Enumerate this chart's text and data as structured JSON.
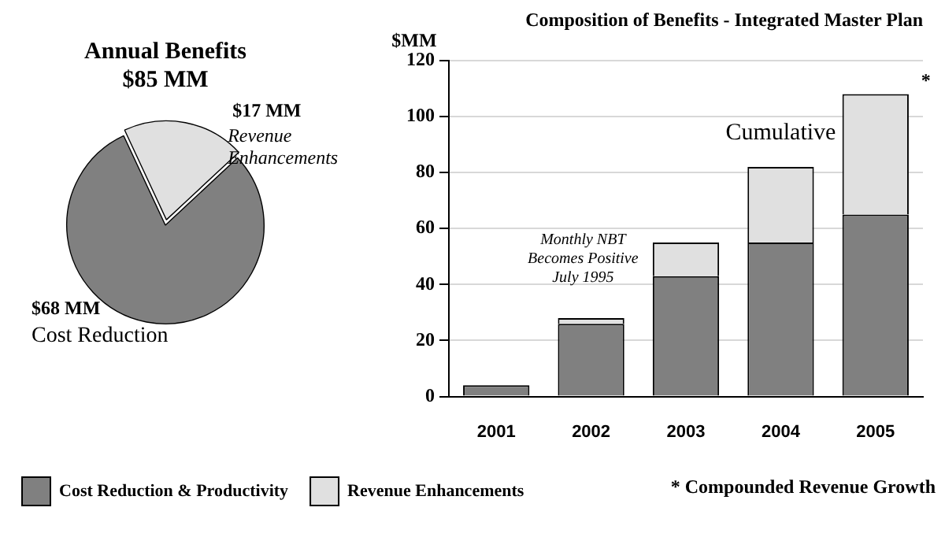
{
  "chart_data": [
    {
      "type": "pie",
      "title": "Annual Benefits",
      "subtitle": "$85 MM",
      "categories": [
        "Revenue Enhancements",
        "Cost Reduction"
      ],
      "values": [
        17,
        68
      ],
      "colors": [
        "#e0e0e0",
        "#808080"
      ],
      "value_labels": [
        "$17 MM",
        "$68 MM"
      ],
      "legend": false
    },
    {
      "type": "bar",
      "title": "Composition of Benefits - Integrated Master Plan",
      "ylabel": "$MM",
      "categories": [
        "2001",
        "2002",
        "2003",
        "2004",
        "2005"
      ],
      "stacked": true,
      "series": [
        {
          "name": "Cost Reduction & Productivity",
          "color": "#808080",
          "values": [
            4,
            26,
            43,
            55,
            65
          ]
        },
        {
          "name": "Revenue Enhancements",
          "color": "#e0e0e0",
          "values": [
            0,
            2,
            12,
            27,
            43
          ]
        }
      ],
      "ylim": [
        0,
        120
      ],
      "yticks": [
        0,
        20,
        40,
        60,
        80,
        100,
        120
      ],
      "grid": "y",
      "legend": "bottom",
      "annotations": [
        "Monthly NBT\nBecomes Positive\nJuly 1995",
        "Cumulative",
        {
          "text": "*",
          "x": "2005",
          "y": 108
        },
        "* Compounded Revenue Growth"
      ]
    }
  ]
}
